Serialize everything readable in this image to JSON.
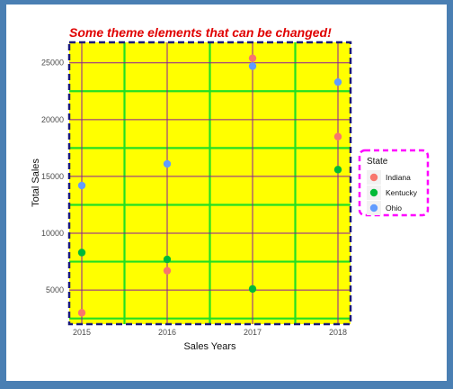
{
  "chart_data": {
    "type": "scatter",
    "title": "Some theme elements that can be changed!",
    "xlabel": "Sales Years",
    "ylabel": "Total Sales",
    "x_categories": [
      "2015",
      "2016",
      "2017",
      "2018"
    ],
    "y_ticks": [
      5000,
      10000,
      15000,
      20000,
      25000
    ],
    "ylim": [
      2000,
      26800
    ],
    "legend_title": "State",
    "legend_position": "right",
    "series": [
      {
        "name": "Indiana",
        "color": "#f8766d",
        "values": [
          3000,
          6700,
          25400,
          18500
        ]
      },
      {
        "name": "Kentucky",
        "color": "#00ba38",
        "values": [
          8300,
          7700,
          5100,
          15600
        ]
      },
      {
        "name": "Ohio",
        "color": "#619cff",
        "values": [
          14200,
          16100,
          24700,
          23300
        ]
      }
    ],
    "colors": {
      "panel_background": "#ffff00",
      "major_grid": "#8b1a9b",
      "minor_grid": "#22e022",
      "panel_border": "#1a1a7a",
      "legend_border": "#ff00ff",
      "title": "#e00000",
      "background": "#4a7fb3"
    }
  }
}
